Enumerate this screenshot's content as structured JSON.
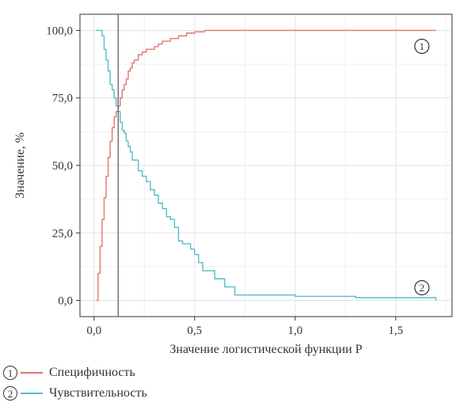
{
  "chart_data": {
    "type": "line",
    "xlabel": "Значение логистической функции P",
    "ylabel": "Значение, %",
    "xlim": [
      -0.07,
      1.78
    ],
    "ylim": [
      -6,
      106
    ],
    "xticks": [
      0,
      0.5,
      1.0,
      1.5
    ],
    "xtick_labels": [
      "0,0",
      "0,5",
      "1,0",
      "1,5"
    ],
    "yticks": [
      0,
      25,
      50,
      75,
      100
    ],
    "ytick_labels": [
      "0,0",
      "25,0",
      "50,0",
      "75,0",
      "100,0"
    ],
    "grid": true,
    "cutoff_x": 0.12,
    "legend_position": "bottom-left",
    "series": [
      {
        "name": "Специфичность",
        "marker": "1",
        "color": "#e0766b",
        "x": [
          0.01,
          0.02,
          0.03,
          0.04,
          0.05,
          0.06,
          0.07,
          0.08,
          0.09,
          0.1,
          0.11,
          0.12,
          0.13,
          0.14,
          0.15,
          0.16,
          0.17,
          0.18,
          0.19,
          0.2,
          0.22,
          0.24,
          0.26,
          0.28,
          0.3,
          0.32,
          0.34,
          0.36,
          0.38,
          0.4,
          0.42,
          0.44,
          0.46,
          0.48,
          0.5,
          0.55,
          0.6,
          0.8,
          1.0,
          1.2,
          1.4,
          1.7
        ],
        "values": [
          0,
          10,
          20,
          30,
          38,
          46,
          53,
          59,
          64,
          68,
          70,
          72,
          75,
          78,
          80,
          82,
          85,
          86,
          88,
          89,
          91,
          92,
          93,
          93,
          94,
          95,
          96,
          96,
          97,
          97,
          98,
          98,
          99,
          99,
          99.5,
          100,
          100,
          100,
          100,
          100,
          100,
          100
        ]
      },
      {
        "name": "Чувствительность",
        "marker": "2",
        "color": "#54bcc8",
        "x": [
          0.01,
          0.03,
          0.04,
          0.05,
          0.06,
          0.07,
          0.08,
          0.09,
          0.1,
          0.11,
          0.12,
          0.13,
          0.14,
          0.15,
          0.16,
          0.17,
          0.18,
          0.19,
          0.2,
          0.22,
          0.24,
          0.26,
          0.28,
          0.3,
          0.32,
          0.34,
          0.36,
          0.38,
          0.4,
          0.42,
          0.44,
          0.46,
          0.48,
          0.5,
          0.52,
          0.54,
          0.56,
          0.6,
          0.65,
          0.7,
          1.0,
          1.3,
          1.7
        ],
        "values": [
          100,
          100,
          98,
          93,
          89,
          85,
          80,
          78,
          75,
          72,
          70,
          66,
          63,
          62,
          59,
          57,
          55,
          52,
          52,
          48,
          46,
          44,
          41,
          39,
          36,
          34,
          31,
          30,
          27,
          22,
          21,
          21,
          19,
          17,
          14,
          11,
          11,
          8,
          5,
          2,
          1.5,
          1,
          0
        ]
      }
    ]
  },
  "legend": {
    "items": [
      {
        "marker": "1",
        "label": "Специфичность",
        "color": "#e0766b"
      },
      {
        "marker": "2",
        "label": "Чувствительность",
        "color": "#54bcc8"
      }
    ]
  }
}
